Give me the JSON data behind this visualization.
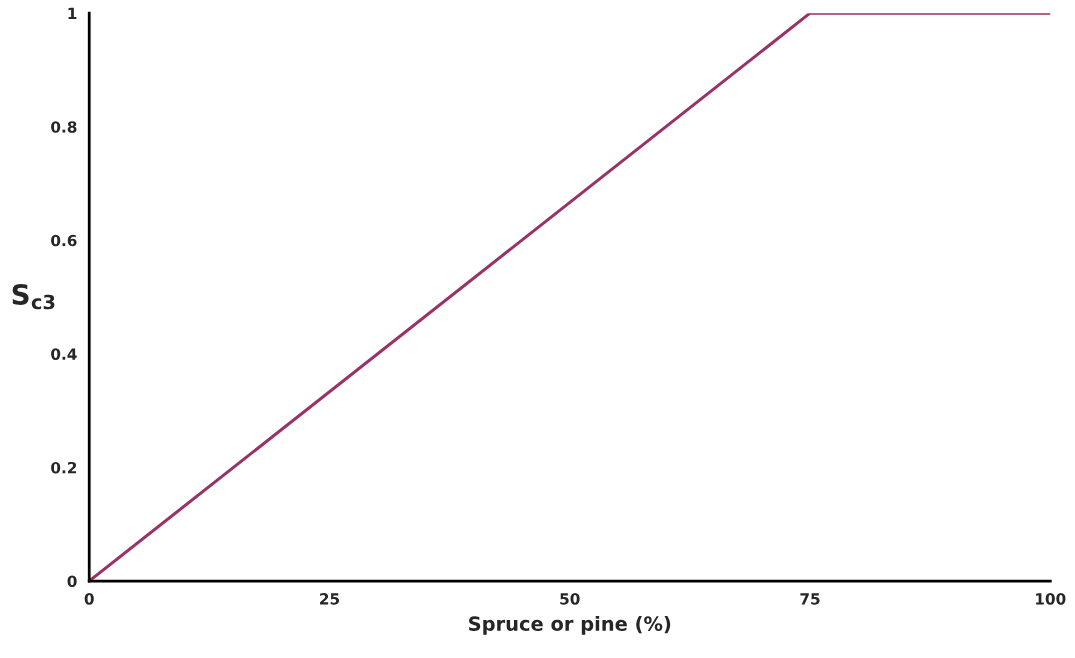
{
  "chart_data": {
    "type": "line",
    "xlabel": "Spruce or pine (%)",
    "ylabel": "S$_{c3}$",
    "x": [
      0,
      75,
      100
    ],
    "series": [
      {
        "color": "#993366",
        "values": [
          0,
          1,
          1
        ]
      }
    ],
    "xlim": [
      0,
      100
    ],
    "xticks": [
      0,
      25,
      50,
      75,
      100
    ],
    "ylim": [
      0,
      1
    ],
    "yticks": [
      0,
      0.2,
      0.4,
      0.6,
      0.8,
      1
    ],
    "grid": false,
    "marker": "none",
    "line_style": "solid"
  }
}
